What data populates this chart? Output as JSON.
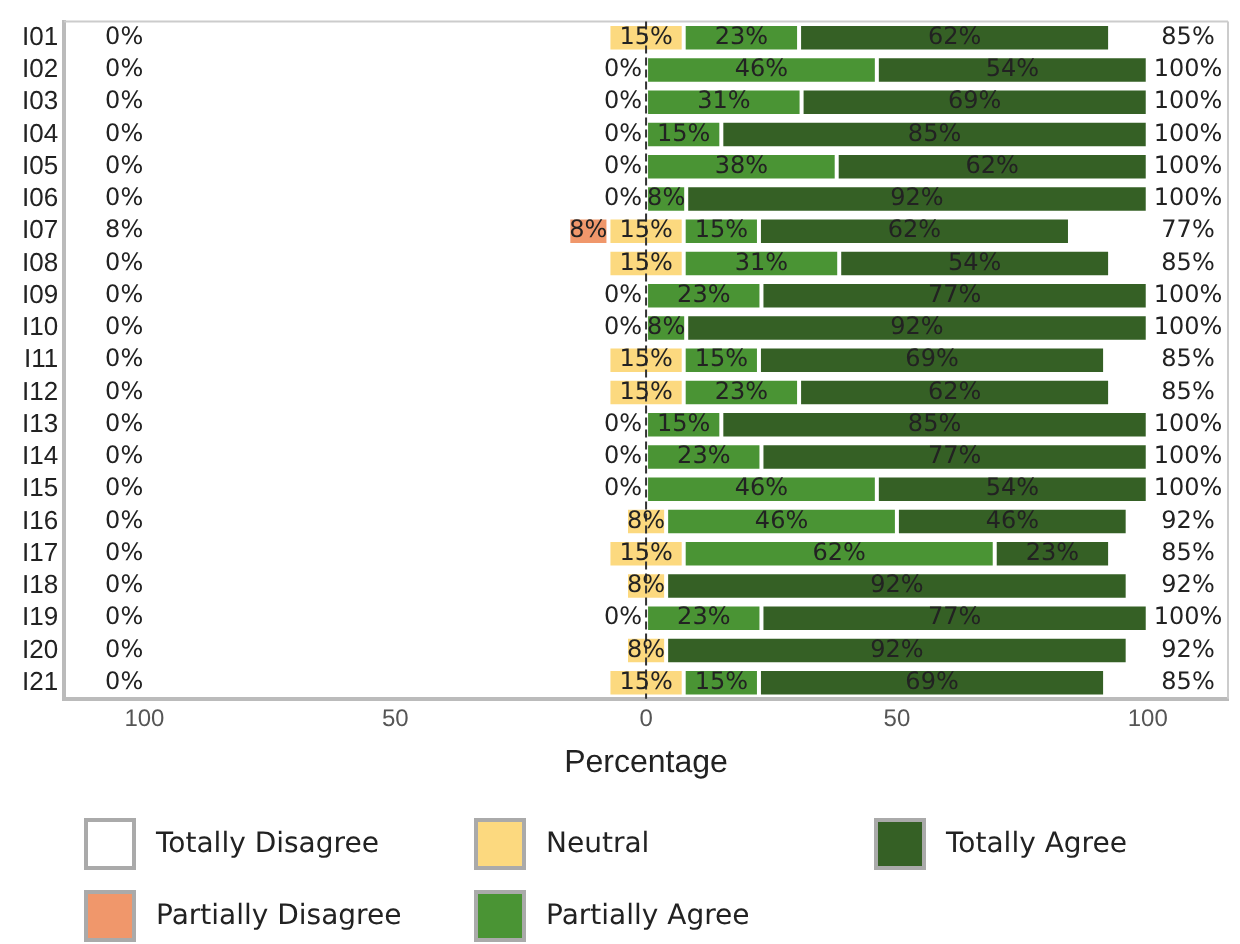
{
  "chart_data": {
    "type": "bar",
    "orientation": "horizontal",
    "xlabel": "Percentage",
    "categories": [
      "I01",
      "I02",
      "I03",
      "I04",
      "I05",
      "I06",
      "I07",
      "I08",
      "I09",
      "I10",
      "I11",
      "I12",
      "I13",
      "I14",
      "I15",
      "I16",
      "I17",
      "I18",
      "I19",
      "I20",
      "I21"
    ],
    "xlim": [
      -116,
      116
    ],
    "xticks": [
      {
        "value": -100,
        "label": "100"
      },
      {
        "value": -50,
        "label": "50"
      },
      0,
      50,
      100
    ],
    "grid": false,
    "legend": "bottom",
    "ref_lines": [
      {
        "axis": "x",
        "value": 0,
        "color": "#333333",
        "line_style": "dashed"
      }
    ],
    "series": [
      {
        "name": "Totally Disagree",
        "color": "#ffffff",
        "values": [
          0,
          0,
          0,
          0,
          0,
          0,
          0,
          0,
          0,
          0,
          0,
          0,
          0,
          0,
          0,
          0,
          0,
          0,
          0,
          0,
          0
        ],
        "value_labels": [
          null,
          null,
          null,
          null,
          null,
          null,
          null,
          null,
          null,
          null,
          null,
          null,
          null,
          null,
          null,
          null,
          null,
          null,
          null,
          null,
          null
        ]
      },
      {
        "name": "Partially Disagree",
        "color": "#f0976b",
        "values": [
          0,
          0,
          0,
          0,
          0,
          0,
          8,
          0,
          0,
          0,
          0,
          0,
          0,
          0,
          0,
          0,
          0,
          0,
          0,
          0,
          0
        ],
        "base": [
          null,
          null,
          null,
          null,
          null,
          null,
          -15.5,
          null,
          null,
          null,
          null,
          null,
          null,
          null,
          null,
          null,
          null,
          null,
          null,
          null,
          null
        ],
        "value_labels": [
          null,
          null,
          null,
          null,
          null,
          null,
          "8%",
          null,
          null,
          null,
          null,
          null,
          null,
          null,
          null,
          null,
          null,
          null,
          null,
          null,
          null
        ]
      },
      {
        "name": "Neutral",
        "color": "#fcd97f",
        "values": [
          15,
          0,
          0,
          0,
          0,
          0,
          15,
          15,
          0,
          0,
          15,
          15,
          0,
          0,
          0,
          8,
          15,
          8,
          0,
          8,
          15
        ],
        "base": [
          -7.5,
          null,
          null,
          null,
          null,
          null,
          -7.5,
          -7.5,
          null,
          null,
          -7.5,
          -7.5,
          null,
          null,
          null,
          -4,
          -7.5,
          -4,
          null,
          -4,
          -7.5
        ],
        "value_labels": [
          "15%",
          "0%",
          "0%",
          "0%",
          "0%",
          "0%",
          "15%",
          "15%",
          "0%",
          "0%",
          "15%",
          "15%",
          "0%",
          "0%",
          "0%",
          "8%",
          "15%",
          "8%",
          "0%",
          "8%",
          "15%"
        ]
      },
      {
        "name": "Partially Agree",
        "color": "#4a9434",
        "values": [
          23,
          46,
          31,
          15,
          38,
          8,
          15,
          31,
          23,
          8,
          15,
          23,
          15,
          23,
          46,
          46,
          62,
          0,
          23,
          0,
          15
        ],
        "base": [
          7.5,
          0,
          0,
          0,
          0,
          0,
          7.5,
          7.5,
          0,
          0,
          7.5,
          7.5,
          0,
          0,
          0,
          4,
          7.5,
          null,
          0,
          null,
          7.5
        ],
        "value_labels": [
          "23%",
          "46%",
          "31%",
          "15%",
          "38%",
          "8%",
          "15%",
          "31%",
          "23%",
          "8%",
          "15%",
          "23%",
          "15%",
          "23%",
          "46%",
          "46%",
          "62%",
          null,
          "23%",
          null,
          "15%"
        ]
      },
      {
        "name": "Totally Agree",
        "color": "#356025",
        "values": [
          62,
          54,
          69,
          85,
          62,
          92,
          62,
          54,
          77,
          92,
          69,
          62,
          85,
          77,
          54,
          46,
          23,
          92,
          77,
          92,
          69
        ],
        "base": [
          30.5,
          46,
          31,
          15,
          38,
          8,
          22.5,
          38.5,
          23,
          8,
          22.5,
          30.5,
          15,
          23,
          46,
          50,
          69.5,
          4,
          23,
          4,
          22.5
        ],
        "value_labels": [
          "62%",
          "54%",
          "69%",
          "85%",
          "62%",
          "92%",
          "62%",
          "54%",
          "77%",
          "92%",
          "69%",
          "62%",
          "85%",
          "77%",
          "54%",
          "46%",
          "23%",
          "92%",
          "77%",
          "92%",
          "69%"
        ]
      }
    ],
    "totals": [
      [
        "0%",
        "85%"
      ],
      [
        "0%",
        "100%"
      ],
      [
        "0%",
        "100%"
      ],
      [
        "0%",
        "100%"
      ],
      [
        "0%",
        "100%"
      ],
      [
        "0%",
        "100%"
      ],
      [
        "8%",
        "77%"
      ],
      [
        "0%",
        "85%"
      ],
      [
        "0%",
        "100%"
      ],
      [
        "0%",
        "100%"
      ],
      [
        "0%",
        "85%"
      ],
      [
        "0%",
        "85%"
      ],
      [
        "0%",
        "100%"
      ],
      [
        "0%",
        "100%"
      ],
      [
        "0%",
        "100%"
      ],
      [
        "0%",
        "92%"
      ],
      [
        "0%",
        "85%"
      ],
      [
        "0%",
        "92%"
      ],
      [
        "0%",
        "100%"
      ],
      [
        "0%",
        "92%"
      ],
      [
        "0%",
        "85%"
      ]
    ]
  }
}
